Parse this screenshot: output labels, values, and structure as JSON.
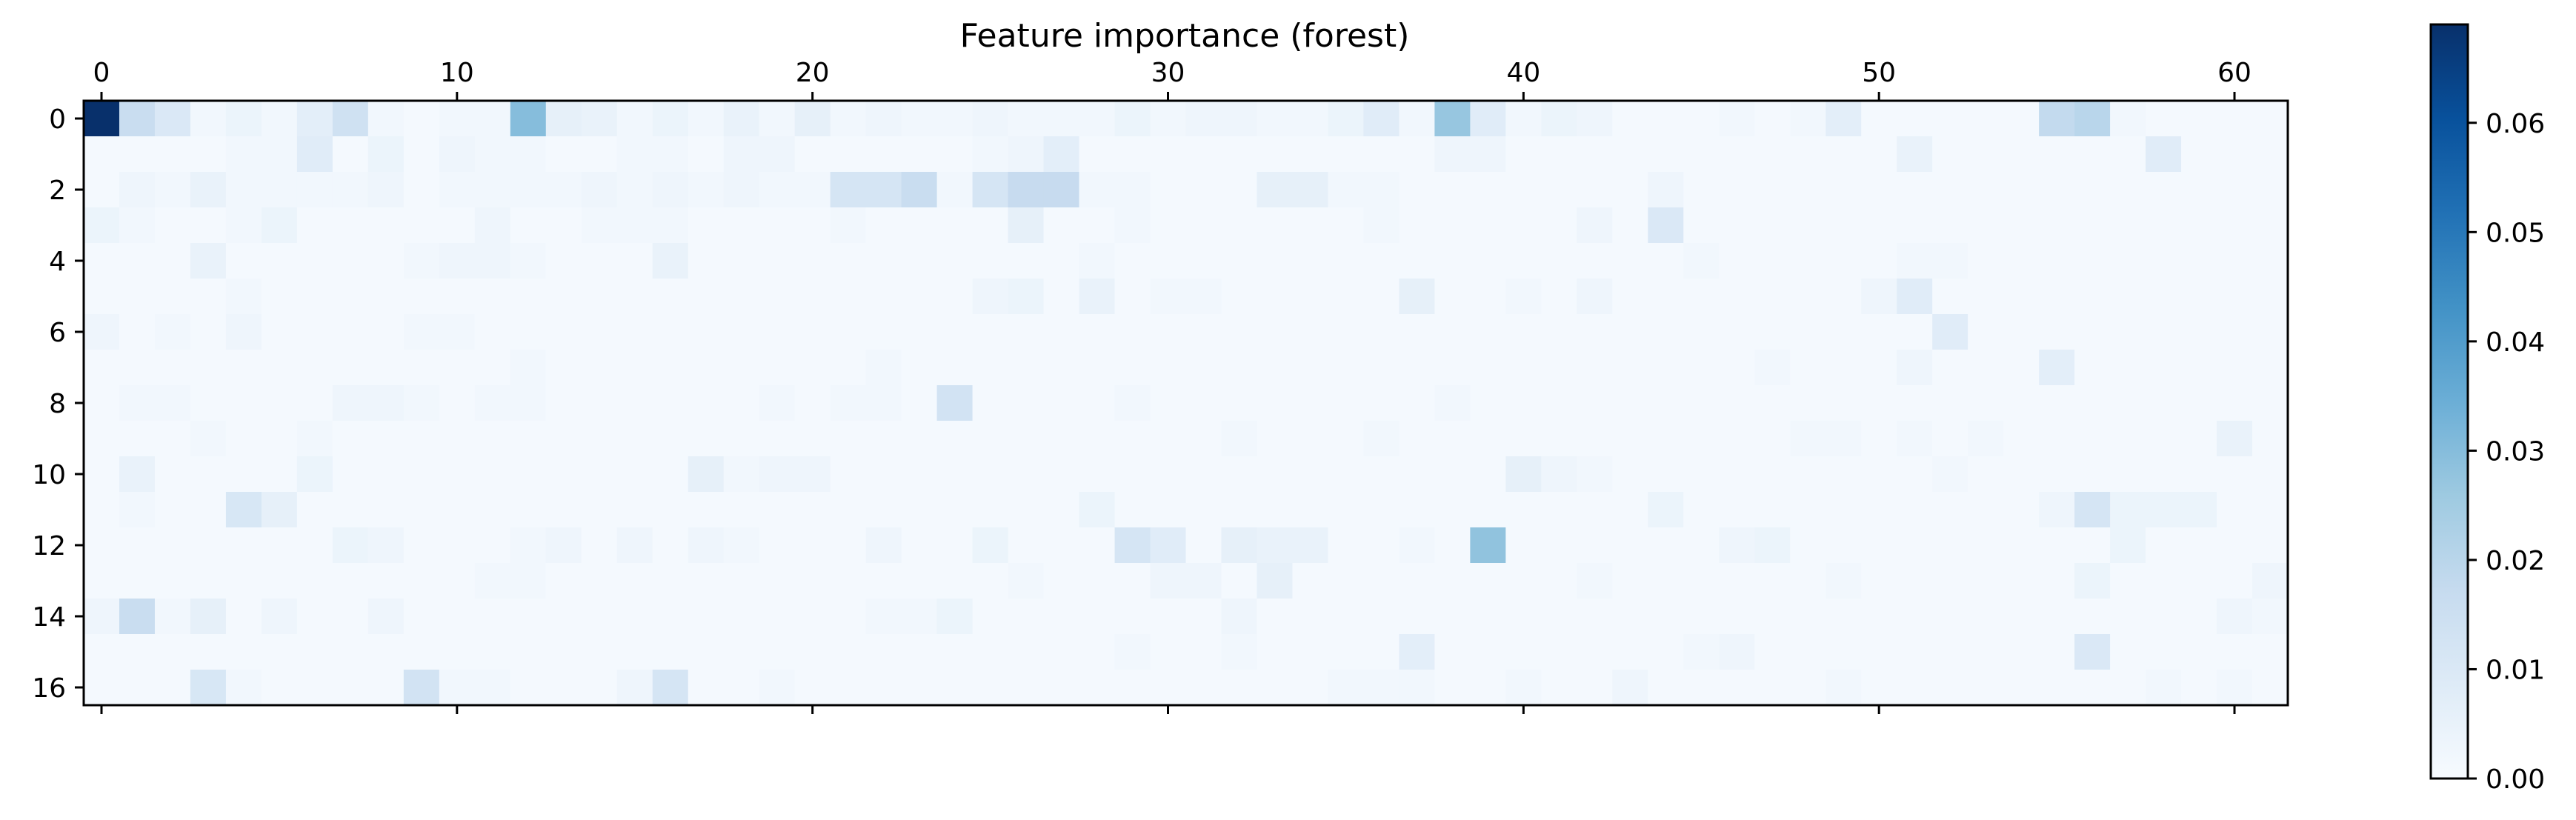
{
  "chart_data": {
    "type": "heatmap",
    "title": "Feature importance (forest)",
    "xlabel": "",
    "ylabel": "",
    "n_cols": 62,
    "n_rows": 17,
    "x_ticks": [
      0,
      10,
      20,
      30,
      40,
      50,
      60
    ],
    "y_ticks": [
      0,
      2,
      4,
      6,
      8,
      10,
      12,
      14,
      16
    ],
    "x_tick_position": "top-and-bottom",
    "colormap": "Blues",
    "colormap_stops": [
      "#f7fbff",
      "#deebf7",
      "#c6dbef",
      "#9ecae1",
      "#6baed6",
      "#4292c6",
      "#2171b5",
      "#08519c",
      "#08306b"
    ],
    "vmin": 0.0,
    "vmax": 0.069,
    "colorbar": {
      "position": "right",
      "ticks": [
        0.0,
        0.01,
        0.02,
        0.03,
        0.04,
        0.05,
        0.06
      ],
      "tick_labels": [
        "0.00",
        "0.01",
        "0.02",
        "0.03",
        "0.04",
        "0.05",
        "0.06"
      ]
    },
    "background_value": 0.001,
    "values": [
      [
        0.069,
        0.016,
        0.01,
        0.002,
        0.004,
        0.002,
        0.007,
        0.014,
        0.002,
        0.001,
        0.002,
        0.002,
        0.03,
        0.006,
        0.005,
        0.002,
        0.004,
        0.002,
        0.005,
        0.002,
        0.006,
        0.002,
        0.003,
        0.002,
        0.002,
        0.003,
        0.002,
        0.002,
        0.002,
        0.004,
        0.002,
        0.003,
        0.003,
        0.002,
        0.002,
        0.004,
        0.008,
        0.002,
        0.027,
        0.008,
        0.002,
        0.004,
        0.003,
        0.001,
        0.001,
        0.001,
        0.002,
        0.001,
        0.002,
        0.007,
        0.001,
        0.001,
        0.001,
        0.001,
        0.001,
        0.018,
        0.02,
        0.002,
        0.001,
        0.001,
        0.001,
        0.001
      ],
      [
        0.001,
        0.001,
        0.001,
        0.001,
        0.002,
        0.002,
        0.008,
        0.001,
        0.004,
        0.001,
        0.003,
        0.002,
        0.002,
        0.001,
        0.001,
        0.002,
        0.002,
        0.001,
        0.003,
        0.003,
        0.001,
        0.001,
        0.001,
        0.001,
        0.001,
        0.002,
        0.003,
        0.007,
        0.001,
        0.001,
        0.001,
        0.001,
        0.001,
        0.001,
        0.001,
        0.001,
        0.001,
        0.001,
        0.003,
        0.003,
        0.001,
        0.001,
        0.001,
        0.001,
        0.001,
        0.001,
        0.001,
        0.001,
        0.001,
        0.001,
        0.001,
        0.005,
        0.001,
        0.001,
        0.001,
        0.001,
        0.001,
        0.001,
        0.008,
        0.001,
        0.001,
        0.001
      ],
      [
        0.001,
        0.003,
        0.002,
        0.005,
        0.002,
        0.002,
        0.002,
        0.002,
        0.003,
        0.001,
        0.002,
        0.002,
        0.002,
        0.002,
        0.003,
        0.002,
        0.003,
        0.002,
        0.003,
        0.002,
        0.002,
        0.012,
        0.012,
        0.016,
        0.002,
        0.012,
        0.017,
        0.017,
        0.002,
        0.002,
        0.001,
        0.001,
        0.001,
        0.006,
        0.006,
        0.002,
        0.002,
        0.001,
        0.001,
        0.001,
        0.001,
        0.001,
        0.001,
        0.001,
        0.003,
        0.001,
        0.001,
        0.001,
        0.001,
        0.001,
        0.001,
        0.001,
        0.001,
        0.001,
        0.001,
        0.001,
        0.001,
        0.001,
        0.001,
        0.001,
        0.001,
        0.001
      ],
      [
        0.004,
        0.002,
        0.001,
        0.001,
        0.002,
        0.004,
        0.001,
        0.001,
        0.001,
        0.001,
        0.001,
        0.003,
        0.001,
        0.001,
        0.002,
        0.002,
        0.002,
        0.001,
        0.001,
        0.001,
        0.001,
        0.002,
        0.001,
        0.001,
        0.001,
        0.001,
        0.006,
        0.001,
        0.001,
        0.002,
        0.001,
        0.001,
        0.001,
        0.001,
        0.001,
        0.001,
        0.002,
        0.001,
        0.001,
        0.001,
        0.001,
        0.001,
        0.003,
        0.001,
        0.01,
        0.001,
        0.001,
        0.001,
        0.001,
        0.001,
        0.001,
        0.001,
        0.001,
        0.001,
        0.001,
        0.001,
        0.001,
        0.001,
        0.001,
        0.001,
        0.001,
        0.001
      ],
      [
        0.001,
        0.001,
        0.001,
        0.005,
        0.001,
        0.001,
        0.001,
        0.001,
        0.001,
        0.002,
        0.003,
        0.003,
        0.002,
        0.001,
        0.001,
        0.001,
        0.005,
        0.001,
        0.001,
        0.001,
        0.001,
        0.001,
        0.001,
        0.001,
        0.001,
        0.001,
        0.001,
        0.001,
        0.002,
        0.001,
        0.001,
        0.001,
        0.001,
        0.001,
        0.001,
        0.001,
        0.001,
        0.001,
        0.001,
        0.001,
        0.001,
        0.001,
        0.001,
        0.001,
        0.001,
        0.002,
        0.001,
        0.001,
        0.001,
        0.001,
        0.001,
        0.002,
        0.002,
        0.001,
        0.001,
        0.001,
        0.001,
        0.001,
        0.001,
        0.001,
        0.001,
        0.001
      ],
      [
        0.001,
        0.001,
        0.001,
        0.001,
        0.002,
        0.001,
        0.001,
        0.001,
        0.001,
        0.001,
        0.001,
        0.001,
        0.001,
        0.001,
        0.001,
        0.001,
        0.001,
        0.001,
        0.001,
        0.001,
        0.001,
        0.001,
        0.001,
        0.001,
        0.001,
        0.003,
        0.004,
        0.001,
        0.005,
        0.001,
        0.002,
        0.002,
        0.001,
        0.001,
        0.001,
        0.001,
        0.001,
        0.006,
        0.001,
        0.001,
        0.002,
        0.001,
        0.003,
        0.001,
        0.001,
        0.001,
        0.001,
        0.001,
        0.001,
        0.001,
        0.003,
        0.008,
        0.001,
        0.001,
        0.001,
        0.001,
        0.001,
        0.001,
        0.001,
        0.001,
        0.001,
        0.001
      ],
      [
        0.003,
        0.001,
        0.002,
        0.001,
        0.003,
        0.001,
        0.001,
        0.001,
        0.001,
        0.002,
        0.002,
        0.001,
        0.001,
        0.001,
        0.001,
        0.001,
        0.001,
        0.001,
        0.001,
        0.001,
        0.001,
        0.001,
        0.001,
        0.001,
        0.001,
        0.001,
        0.001,
        0.001,
        0.001,
        0.001,
        0.001,
        0.001,
        0.001,
        0.001,
        0.001,
        0.001,
        0.001,
        0.001,
        0.001,
        0.001,
        0.001,
        0.001,
        0.001,
        0.001,
        0.001,
        0.001,
        0.001,
        0.001,
        0.001,
        0.001,
        0.001,
        0.001,
        0.008,
        0.001,
        0.001,
        0.001,
        0.001,
        0.001,
        0.001,
        0.001,
        0.001,
        0.001
      ],
      [
        0.001,
        0.001,
        0.001,
        0.001,
        0.001,
        0.001,
        0.001,
        0.001,
        0.001,
        0.001,
        0.001,
        0.001,
        0.002,
        0.001,
        0.001,
        0.001,
        0.001,
        0.001,
        0.001,
        0.001,
        0.001,
        0.001,
        0.002,
        0.001,
        0.001,
        0.001,
        0.001,
        0.001,
        0.001,
        0.001,
        0.001,
        0.001,
        0.001,
        0.001,
        0.001,
        0.001,
        0.001,
        0.001,
        0.001,
        0.001,
        0.001,
        0.001,
        0.001,
        0.001,
        0.001,
        0.001,
        0.001,
        0.002,
        0.001,
        0.001,
        0.001,
        0.003,
        0.001,
        0.001,
        0.001,
        0.007,
        0.001,
        0.001,
        0.001,
        0.001,
        0.001,
        0.001
      ],
      [
        0.001,
        0.002,
        0.002,
        0.001,
        0.001,
        0.001,
        0.001,
        0.003,
        0.003,
        0.002,
        0.001,
        0.002,
        0.002,
        0.001,
        0.001,
        0.001,
        0.001,
        0.001,
        0.001,
        0.002,
        0.001,
        0.002,
        0.002,
        0.001,
        0.013,
        0.001,
        0.001,
        0.001,
        0.001,
        0.002,
        0.001,
        0.001,
        0.001,
        0.001,
        0.001,
        0.001,
        0.001,
        0.001,
        0.002,
        0.001,
        0.001,
        0.001,
        0.001,
        0.001,
        0.001,
        0.001,
        0.001,
        0.001,
        0.001,
        0.001,
        0.001,
        0.001,
        0.001,
        0.001,
        0.001,
        0.001,
        0.001,
        0.001,
        0.001,
        0.001,
        0.001,
        0.001
      ],
      [
        0.001,
        0.001,
        0.001,
        0.002,
        0.001,
        0.001,
        0.002,
        0.001,
        0.001,
        0.001,
        0.001,
        0.001,
        0.001,
        0.001,
        0.001,
        0.001,
        0.001,
        0.001,
        0.001,
        0.001,
        0.001,
        0.001,
        0.001,
        0.001,
        0.001,
        0.001,
        0.001,
        0.001,
        0.001,
        0.001,
        0.001,
        0.001,
        0.002,
        0.001,
        0.001,
        0.001,
        0.002,
        0.001,
        0.001,
        0.001,
        0.001,
        0.001,
        0.001,
        0.001,
        0.001,
        0.001,
        0.001,
        0.001,
        0.002,
        0.002,
        0.001,
        0.002,
        0.001,
        0.002,
        0.001,
        0.001,
        0.001,
        0.001,
        0.001,
        0.001,
        0.005,
        0.001
      ],
      [
        0.001,
        0.005,
        0.001,
        0.001,
        0.001,
        0.001,
        0.004,
        0.001,
        0.001,
        0.001,
        0.001,
        0.001,
        0.001,
        0.001,
        0.001,
        0.001,
        0.001,
        0.006,
        0.002,
        0.003,
        0.003,
        0.001,
        0.001,
        0.001,
        0.001,
        0.001,
        0.001,
        0.001,
        0.001,
        0.001,
        0.001,
        0.001,
        0.001,
        0.001,
        0.001,
        0.001,
        0.001,
        0.001,
        0.001,
        0.001,
        0.006,
        0.003,
        0.002,
        0.001,
        0.001,
        0.001,
        0.001,
        0.001,
        0.001,
        0.001,
        0.001,
        0.001,
        0.002,
        0.001,
        0.001,
        0.001,
        0.001,
        0.001,
        0.001,
        0.001,
        0.001,
        0.001
      ],
      [
        0.001,
        0.002,
        0.001,
        0.001,
        0.011,
        0.006,
        0.001,
        0.001,
        0.001,
        0.001,
        0.001,
        0.001,
        0.001,
        0.001,
        0.001,
        0.001,
        0.001,
        0.001,
        0.001,
        0.001,
        0.001,
        0.001,
        0.001,
        0.001,
        0.001,
        0.001,
        0.001,
        0.001,
        0.004,
        0.001,
        0.001,
        0.001,
        0.001,
        0.001,
        0.001,
        0.001,
        0.001,
        0.001,
        0.001,
        0.001,
        0.001,
        0.001,
        0.001,
        0.001,
        0.004,
        0.001,
        0.001,
        0.001,
        0.001,
        0.001,
        0.001,
        0.001,
        0.001,
        0.001,
        0.001,
        0.003,
        0.012,
        0.004,
        0.004,
        0.004,
        0.001,
        0.001
      ],
      [
        0.001,
        0.001,
        0.001,
        0.001,
        0.001,
        0.001,
        0.001,
        0.004,
        0.003,
        0.001,
        0.001,
        0.001,
        0.002,
        0.003,
        0.001,
        0.003,
        0.001,
        0.003,
        0.002,
        0.001,
        0.001,
        0.001,
        0.003,
        0.001,
        0.001,
        0.004,
        0.001,
        0.001,
        0.001,
        0.012,
        0.008,
        0.001,
        0.006,
        0.005,
        0.005,
        0.001,
        0.001,
        0.002,
        0.001,
        0.028,
        0.001,
        0.001,
        0.001,
        0.001,
        0.001,
        0.001,
        0.003,
        0.004,
        0.001,
        0.001,
        0.001,
        0.001,
        0.001,
        0.001,
        0.001,
        0.001,
        0.001,
        0.004,
        0.001,
        0.001,
        0.001,
        0.001
      ],
      [
        0.001,
        0.001,
        0.001,
        0.001,
        0.001,
        0.001,
        0.001,
        0.001,
        0.001,
        0.001,
        0.001,
        0.002,
        0.002,
        0.001,
        0.001,
        0.001,
        0.001,
        0.001,
        0.001,
        0.001,
        0.001,
        0.001,
        0.001,
        0.001,
        0.001,
        0.001,
        0.002,
        0.001,
        0.001,
        0.001,
        0.003,
        0.003,
        0.001,
        0.006,
        0.001,
        0.001,
        0.001,
        0.001,
        0.001,
        0.001,
        0.001,
        0.001,
        0.002,
        0.001,
        0.001,
        0.001,
        0.001,
        0.001,
        0.001,
        0.002,
        0.001,
        0.001,
        0.001,
        0.001,
        0.001,
        0.001,
        0.004,
        0.001,
        0.001,
        0.001,
        0.001,
        0.003
      ],
      [
        0.003,
        0.016,
        0.002,
        0.006,
        0.001,
        0.003,
        0.001,
        0.001,
        0.003,
        0.001,
        0.001,
        0.001,
        0.001,
        0.001,
        0.001,
        0.001,
        0.001,
        0.001,
        0.001,
        0.001,
        0.001,
        0.001,
        0.002,
        0.002,
        0.004,
        0.001,
        0.001,
        0.001,
        0.001,
        0.001,
        0.001,
        0.001,
        0.003,
        0.001,
        0.001,
        0.001,
        0.001,
        0.001,
        0.001,
        0.001,
        0.001,
        0.001,
        0.001,
        0.001,
        0.001,
        0.001,
        0.001,
        0.001,
        0.001,
        0.001,
        0.001,
        0.001,
        0.001,
        0.001,
        0.001,
        0.001,
        0.001,
        0.001,
        0.001,
        0.001,
        0.003,
        0.002
      ],
      [
        0.001,
        0.001,
        0.001,
        0.001,
        0.001,
        0.001,
        0.001,
        0.001,
        0.001,
        0.001,
        0.001,
        0.001,
        0.001,
        0.001,
        0.001,
        0.001,
        0.001,
        0.001,
        0.001,
        0.001,
        0.001,
        0.001,
        0.001,
        0.001,
        0.001,
        0.001,
        0.001,
        0.001,
        0.001,
        0.002,
        0.001,
        0.001,
        0.002,
        0.001,
        0.001,
        0.001,
        0.001,
        0.007,
        0.001,
        0.001,
        0.001,
        0.001,
        0.001,
        0.001,
        0.001,
        0.002,
        0.003,
        0.001,
        0.001,
        0.001,
        0.001,
        0.001,
        0.001,
        0.001,
        0.001,
        0.001,
        0.01,
        0.001,
        0.001,
        0.001,
        0.001,
        0.001
      ],
      [
        0.001,
        0.001,
        0.001,
        0.011,
        0.002,
        0.001,
        0.001,
        0.001,
        0.001,
        0.013,
        0.002,
        0.002,
        0.001,
        0.001,
        0.001,
        0.003,
        0.012,
        0.001,
        0.001,
        0.002,
        0.001,
        0.001,
        0.001,
        0.001,
        0.001,
        0.001,
        0.001,
        0.001,
        0.001,
        0.001,
        0.001,
        0.001,
        0.001,
        0.001,
        0.001,
        0.002,
        0.002,
        0.002,
        0.001,
        0.001,
        0.002,
        0.001,
        0.001,
        0.003,
        0.001,
        0.001,
        0.001,
        0.001,
        0.001,
        0.002,
        0.001,
        0.001,
        0.001,
        0.001,
        0.001,
        0.001,
        0.001,
        0.001,
        0.002,
        0.001,
        0.002,
        0.001
      ]
    ]
  }
}
